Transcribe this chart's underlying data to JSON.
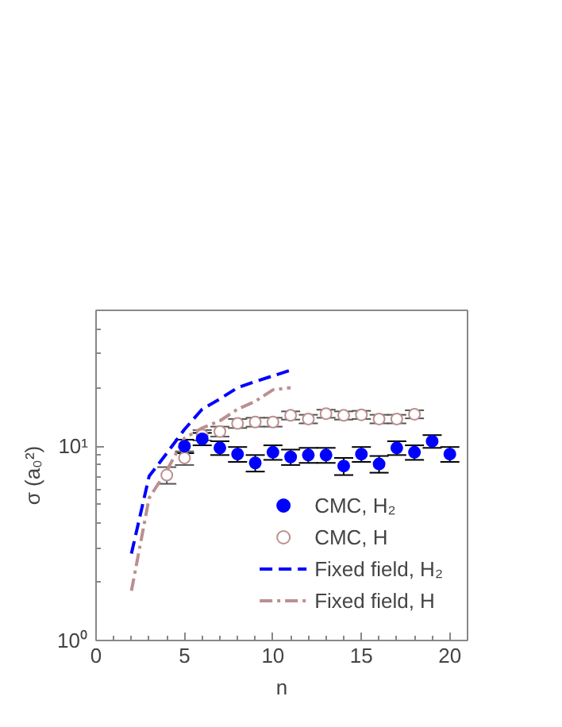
{
  "chart_data": {
    "type": "scatter",
    "xlabel": "n",
    "ylabel": "σ (a₀²)",
    "log": "y",
    "xlim": [
      0,
      21
    ],
    "xticks": [
      0,
      5,
      10,
      15,
      20
    ],
    "ylim": [
      1,
      50
    ],
    "yticks": [
      {
        "value": 1,
        "label": "10⁰"
      },
      {
        "value": 10,
        "label": "10¹"
      }
    ],
    "legend": "bottom right",
    "grid": false,
    "series": [
      {
        "name": "CMC, H₂",
        "type": "scatter",
        "marker": "circle",
        "color": "#0000ff",
        "x": [
          5,
          6,
          7,
          8,
          9,
          10,
          11,
          12,
          13,
          14,
          15,
          16,
          17,
          18,
          19,
          20
        ],
        "values": [
          10.0,
          10.9,
          9.8,
          9.1,
          8.2,
          9.3,
          8.8,
          9.0,
          9.0,
          7.9,
          9.1,
          8.1,
          9.8,
          9.3,
          10.6,
          9.1
        ],
        "errors": [
          0.8,
          0.8,
          0.8,
          0.8,
          0.8,
          0.8,
          0.8,
          0.8,
          0.8,
          0.8,
          0.8,
          0.8,
          0.8,
          0.8,
          0.8,
          0.8
        ]
      },
      {
        "name": "CMC, H",
        "type": "scatter",
        "marker": "open circle",
        "color": "#bc8f8f",
        "x": [
          4,
          5,
          6,
          7,
          8,
          9,
          10,
          11,
          12,
          13,
          14,
          15,
          16,
          17,
          18
        ],
        "values": [
          7.1,
          8.7,
          11.4,
          11.9,
          13.1,
          13.3,
          13.3,
          14.4,
          13.8,
          14.7,
          14.4,
          14.5,
          13.8,
          13.8,
          14.6
        ],
        "errors": [
          0.7,
          0.7,
          0.7,
          0.7,
          0.7,
          0.7,
          0.7,
          0.7,
          0.7,
          0.7,
          0.7,
          0.7,
          0.7,
          0.7,
          0.7
        ]
      },
      {
        "name": "Fixed field, H₂",
        "type": "line",
        "line_style": "dashed",
        "color": "#0000ff",
        "x": [
          2,
          3,
          4,
          5,
          6,
          7,
          8,
          9,
          10,
          11
        ],
        "values": [
          2.8,
          7.0,
          9.2,
          12.2,
          15.5,
          17.5,
          20.0,
          21.5,
          23.0,
          24.6
        ]
      },
      {
        "name": "Fixed field, H",
        "type": "line",
        "line_style": "dashdot",
        "color": "#bc8f8f",
        "x": [
          2,
          3,
          4,
          5,
          6,
          7,
          8,
          9,
          10,
          11
        ],
        "values": [
          1.8,
          5.4,
          7.5,
          11.0,
          12.4,
          13.5,
          15.5,
          17.0,
          19.5,
          20.0
        ]
      }
    ]
  }
}
